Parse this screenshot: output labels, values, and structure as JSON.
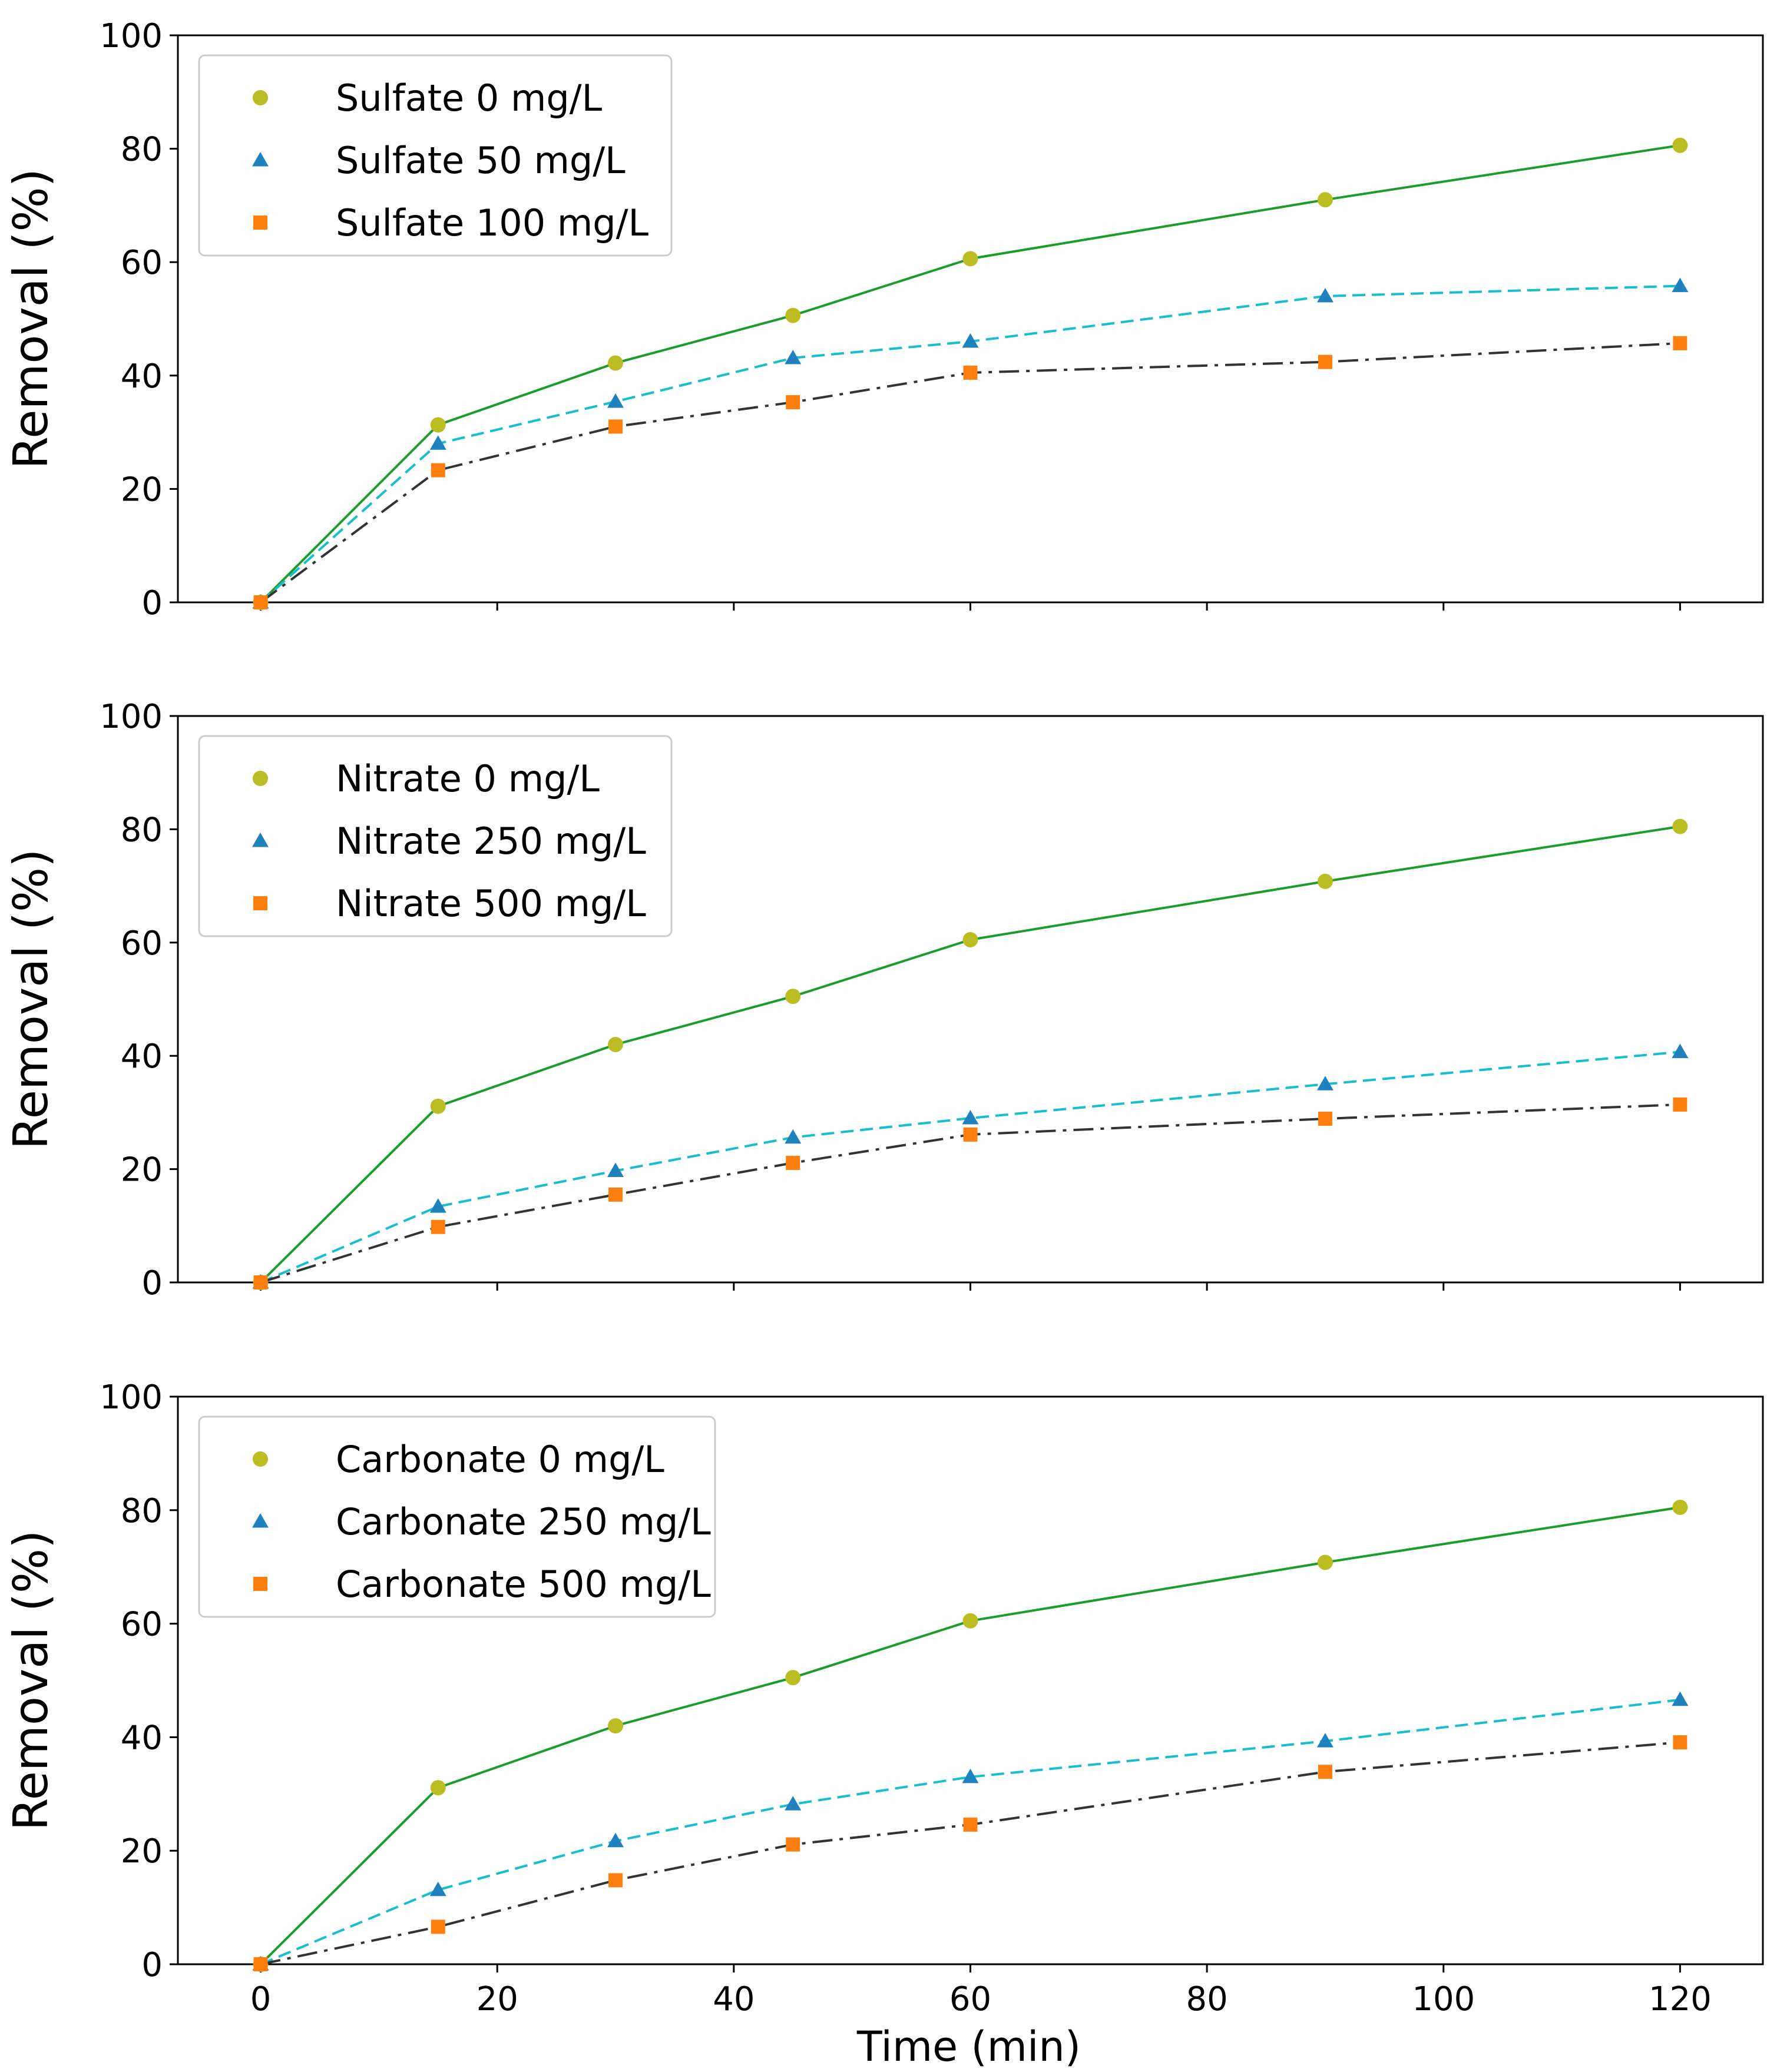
{
  "chart_data": [
    {
      "type": "line",
      "title": "",
      "xlabel": "",
      "ylabel": "Removal (%)",
      "xlim": [
        -7,
        127
      ],
      "ylim": [
        0,
        100
      ],
      "xticks": [
        0,
        20,
        40,
        60,
        80,
        100,
        120
      ],
      "xtick_labels_shown": false,
      "yticks": [
        0,
        20,
        40,
        60,
        80,
        100
      ],
      "yticklabels": [
        "0",
        "20",
        "40",
        "60",
        "80",
        "100"
      ],
      "legend_position": "top-left",
      "x": [
        0,
        15,
        30,
        45,
        60,
        90,
        120
      ],
      "series": [
        {
          "name": "Sulfate 0 mg/L",
          "values": [
            0,
            31.3,
            42.2,
            50.6,
            60.6,
            71.0,
            80.6
          ],
          "line_color": "#1a9d2b",
          "line_style": "solid",
          "marker": "circle",
          "marker_color": "#bcbd22"
        },
        {
          "name": "Sulfate 50 mg/L",
          "values": [
            0,
            28.0,
            35.4,
            43.1,
            46.0,
            54.0,
            55.8
          ],
          "line_color": "#17becf",
          "line_style": "dashed",
          "marker": "triangle",
          "marker_color": "#1f82bf"
        },
        {
          "name": "Sulfate 100 mg/L",
          "values": [
            0,
            23.3,
            31.0,
            35.3,
            40.5,
            42.4,
            45.7
          ],
          "line_color": "#333333",
          "line_style": "dashdot",
          "marker": "square",
          "marker_color": "#ff7f0e"
        }
      ]
    },
    {
      "type": "line",
      "title": "",
      "xlabel": "",
      "ylabel": "Removal (%)",
      "xlim": [
        -7,
        127
      ],
      "ylim": [
        0,
        100
      ],
      "xticks": [
        0,
        20,
        40,
        60,
        80,
        100,
        120
      ],
      "xtick_labels_shown": false,
      "yticks": [
        0,
        20,
        40,
        60,
        80,
        100
      ],
      "yticklabels": [
        "0",
        "20",
        "40",
        "60",
        "80",
        "100"
      ],
      "legend_position": "top-left",
      "x": [
        0,
        15,
        30,
        45,
        60,
        90,
        120
      ],
      "series": [
        {
          "name": "Nitrate 0 mg/L",
          "values": [
            0,
            31.1,
            42.0,
            50.5,
            60.5,
            70.8,
            80.5
          ],
          "line_color": "#1a9d2b",
          "line_style": "solid",
          "marker": "circle",
          "marker_color": "#bcbd22"
        },
        {
          "name": "Nitrate 250 mg/L",
          "values": [
            0,
            13.4,
            19.7,
            25.6,
            29.0,
            35.0,
            40.7
          ],
          "line_color": "#17becf",
          "line_style": "dashed",
          "marker": "triangle",
          "marker_color": "#1f82bf"
        },
        {
          "name": "Nitrate 500 mg/L",
          "values": [
            0,
            9.8,
            15.5,
            21.1,
            26.1,
            28.9,
            31.4
          ],
          "line_color": "#333333",
          "line_style": "dashdot",
          "marker": "square",
          "marker_color": "#ff7f0e"
        }
      ]
    },
    {
      "type": "line",
      "title": "",
      "xlabel": "Time (min)",
      "ylabel": "Removal (%)",
      "xlim": [
        -7,
        127
      ],
      "ylim": [
        0,
        100
      ],
      "xticks": [
        0,
        20,
        40,
        60,
        80,
        100,
        120
      ],
      "xticklabels": [
        "0",
        "20",
        "40",
        "60",
        "80",
        "100",
        "120"
      ],
      "xtick_labels_shown": true,
      "yticks": [
        0,
        20,
        40,
        60,
        80,
        100
      ],
      "yticklabels": [
        "0",
        "20",
        "40",
        "60",
        "80",
        "100"
      ],
      "legend_position": "top-left",
      "x": [
        0,
        15,
        30,
        45,
        60,
        90,
        120
      ],
      "series": [
        {
          "name": "Carbonate 0 mg/L",
          "values": [
            0,
            31.1,
            42.0,
            50.5,
            60.5,
            70.8,
            80.5
          ],
          "line_color": "#1a9d2b",
          "line_style": "solid",
          "marker": "circle",
          "marker_color": "#bcbd22"
        },
        {
          "name": "Carbonate 250 mg/L",
          "values": [
            0,
            13.1,
            21.7,
            28.2,
            33.0,
            39.3,
            46.6
          ],
          "line_color": "#17becf",
          "line_style": "dashed",
          "marker": "triangle",
          "marker_color": "#1f82bf"
        },
        {
          "name": "Carbonate 500 mg/L",
          "values": [
            0,
            6.6,
            14.8,
            21.1,
            24.6,
            33.9,
            39.1
          ],
          "line_color": "#333333",
          "line_style": "dashdot",
          "marker": "square",
          "marker_color": "#ff7f0e"
        }
      ]
    }
  ]
}
